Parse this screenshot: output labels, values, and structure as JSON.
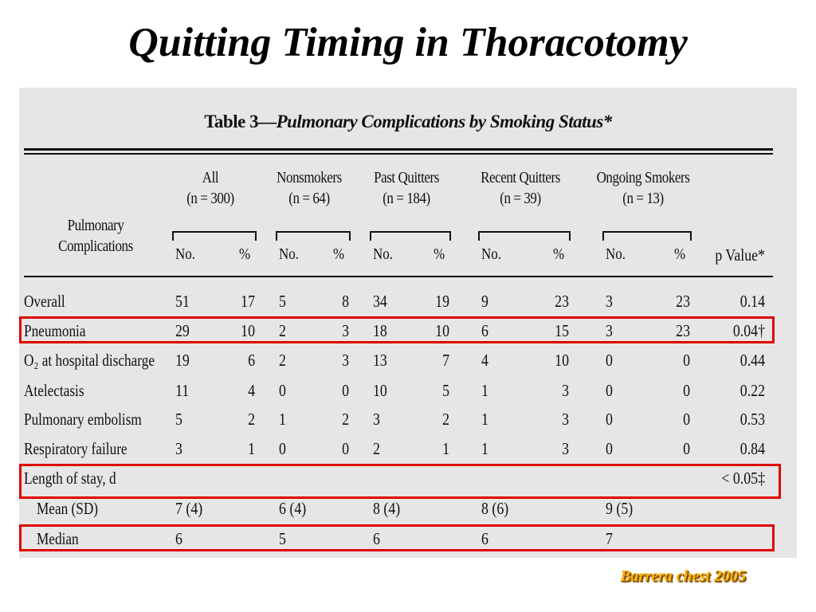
{
  "slide": {
    "title": "Quitting Timing in Thoracotomy",
    "citation": "Barrera chest 2005"
  },
  "table": {
    "caption_prefix": "Table 3—",
    "caption_title": "Pulmonary Complications by Smoking Status*",
    "row_header": [
      "Pulmonary",
      "Complications"
    ],
    "groups": [
      {
        "name": "All",
        "n": "(n = 300)"
      },
      {
        "name": "Nonsmokers",
        "n": "(n = 64)"
      },
      {
        "name": "Past Quitters",
        "n": "(n = 184)"
      },
      {
        "name": "Recent Quitters",
        "n": "(n = 39)"
      },
      {
        "name": "Ongoing Smokers",
        "n": "(n = 13)"
      }
    ],
    "sub_no": "No.",
    "sub_pct": "%",
    "pvalue_header": "p Value*",
    "rows": [
      {
        "label": "Overall",
        "cells": [
          "51",
          "17",
          "5",
          "8",
          "34",
          "19",
          "9",
          "23",
          "3",
          "23"
        ],
        "p": "0.14",
        "highlight": false
      },
      {
        "label": "Pneumonia",
        "cells": [
          "29",
          "10",
          "2",
          "3",
          "18",
          "10",
          "6",
          "15",
          "3",
          "23"
        ],
        "p": "0.04†",
        "highlight": true
      },
      {
        "label": "O₂ at hospital discharge",
        "cells": [
          "19",
          "6",
          "2",
          "3",
          "13",
          "7",
          "4",
          "10",
          "0",
          "0"
        ],
        "p": "0.44",
        "highlight": false
      },
      {
        "label": "Atelectasis",
        "cells": [
          "11",
          "4",
          "0",
          "0",
          "10",
          "5",
          "1",
          "3",
          "0",
          "0"
        ],
        "p": "0.22",
        "highlight": false
      },
      {
        "label": "Pulmonary embolism",
        "cells": [
          "5",
          "2",
          "1",
          "2",
          "3",
          "2",
          "1",
          "3",
          "0",
          "0"
        ],
        "p": "0.53",
        "highlight": false
      },
      {
        "label": "Respiratory failure",
        "cells": [
          "3",
          "1",
          "0",
          "0",
          "2",
          "1",
          "1",
          "3",
          "0",
          "0"
        ],
        "p": "0.84",
        "highlight": false
      },
      {
        "label": "Length of stay, d",
        "cells": [
          "",
          "",
          "",
          "",
          "",
          "",
          "",
          "",
          "",
          ""
        ],
        "p": "< 0.05‡",
        "highlight": true
      },
      {
        "label": "Mean (SD)",
        "cells": [
          "7 (4)",
          "",
          "6 (4)",
          "",
          "8 (4)",
          "",
          "8 (6)",
          "",
          "9 (5)",
          ""
        ],
        "p": "",
        "highlight": false,
        "indent": true
      },
      {
        "label": "Median",
        "cells": [
          "6",
          "",
          "5",
          "",
          "6",
          "",
          "6",
          "",
          "7",
          ""
        ],
        "p": "",
        "highlight": true,
        "indent": true
      }
    ]
  }
}
